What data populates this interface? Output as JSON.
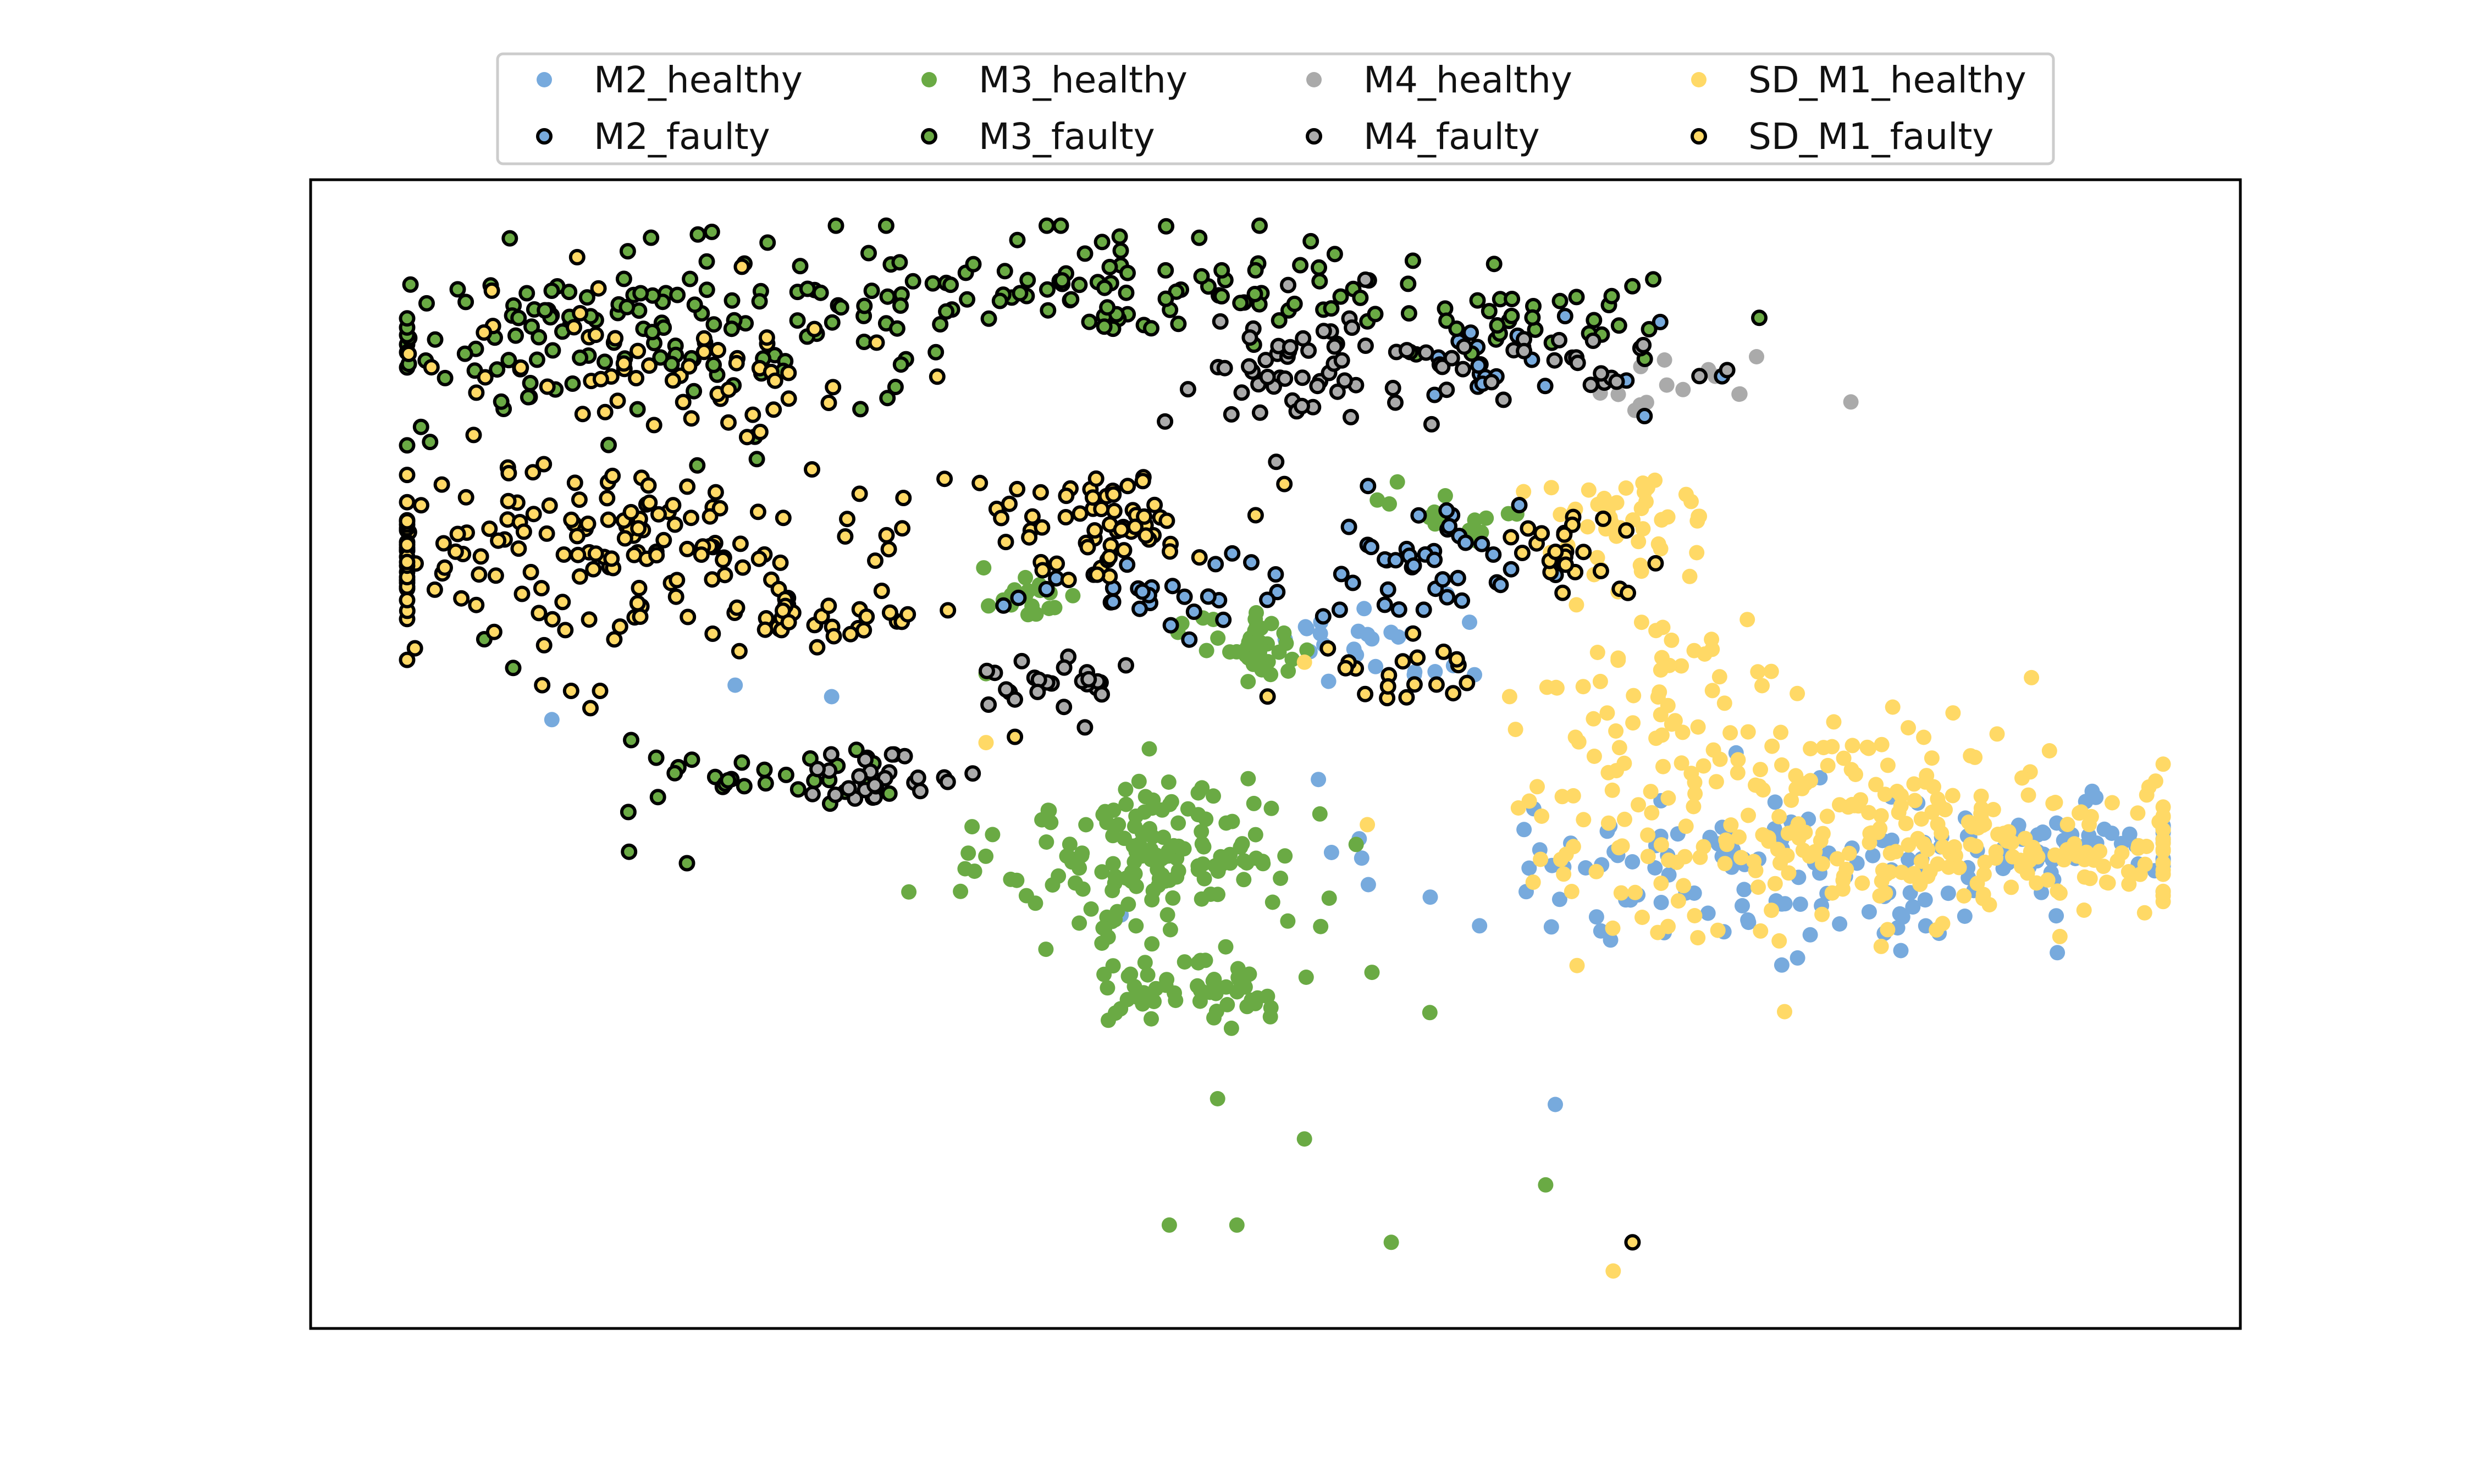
{
  "chart_data": {
    "type": "scatter",
    "title": "",
    "xlabel": "",
    "ylabel": "",
    "axes_ticks": false,
    "grid": false,
    "legend_position": "top-center (above plot), 4 columns",
    "xlim": [
      0,
      100
    ],
    "ylim": [
      0,
      100
    ],
    "colors": {
      "M2": "#77aadd",
      "M3": "#6aaa44",
      "M4": "#aaaaaa",
      "SD_M1": "#ffd966",
      "faulty_edge": "#000000"
    },
    "series": [
      {
        "name": "M2_healthy",
        "machine": "M2",
        "condition": "healthy",
        "clusters": [
          {
            "cx": 74,
            "cy": 40,
            "sx": 9,
            "sy": 4,
            "n": 120
          },
          {
            "cx": 92,
            "cy": 42,
            "sx": 5,
            "sy": 1.5,
            "n": 60
          },
          {
            "cx": 55,
            "cy": 60,
            "sx": 3,
            "sy": 3,
            "n": 25
          }
        ],
        "points": [
          [
            12.5,
            53
          ],
          [
            22,
            56
          ],
          [
            27,
            55
          ],
          [
            64.5,
            19.5
          ],
          [
            42,
            36
          ]
        ]
      },
      {
        "name": "M2_faulty",
        "machine": "M2",
        "condition": "faulty",
        "clusters": [
          {
            "cx": 58,
            "cy": 66,
            "sx": 2.5,
            "sy": 3,
            "n": 40
          },
          {
            "cx": 44,
            "cy": 64,
            "sx": 4,
            "sy": 1.5,
            "n": 30
          },
          {
            "cx": 62,
            "cy": 84,
            "sx": 4,
            "sy": 2,
            "n": 20
          }
        ],
        "points": []
      },
      {
        "name": "M3_healthy",
        "machine": "M3",
        "condition": "healthy",
        "clusters": [
          {
            "cx": 44,
            "cy": 41,
            "sx": 4,
            "sy": 3.5,
            "n": 150
          },
          {
            "cx": 46,
            "cy": 30,
            "sx": 3,
            "sy": 1.8,
            "n": 60
          },
          {
            "cx": 49,
            "cy": 59,
            "sx": 1.5,
            "sy": 1.5,
            "n": 40
          },
          {
            "cx": 37,
            "cy": 64,
            "sx": 1.5,
            "sy": 1,
            "n": 20
          },
          {
            "cx": 60,
            "cy": 71,
            "sx": 2,
            "sy": 1.5,
            "n": 15
          }
        ],
        "points": [
          [
            31,
            38
          ],
          [
            47,
            20
          ],
          [
            51.5,
            16.5
          ],
          [
            44.5,
            9
          ],
          [
            48,
            9
          ],
          [
            56,
            7.5
          ],
          [
            64,
            12.5
          ],
          [
            55,
            31
          ],
          [
            58,
            27.5
          ],
          [
            35,
            57
          ]
        ]
      },
      {
        "name": "M3_faulty",
        "machine": "M3",
        "condition": "faulty",
        "clusters": [
          {
            "cx": 16,
            "cy": 86,
            "sx": 7,
            "sy": 4,
            "n": 130
          },
          {
            "cx": 40,
            "cy": 91,
            "sx": 9,
            "sy": 2.5,
            "n": 110
          },
          {
            "cx": 62,
            "cy": 88,
            "sx": 5,
            "sy": 2,
            "n": 40
          },
          {
            "cx": 25,
            "cy": 48,
            "sx": 5,
            "sy": 1.5,
            "n": 30
          }
        ],
        "points": [
          [
            16.5,
            41.5
          ],
          [
            19.5,
            40.5
          ],
          [
            9,
            60
          ],
          [
            10.5,
            57.5
          ]
        ]
      },
      {
        "name": "M4_healthy",
        "machine": "M4",
        "condition": "healthy",
        "clusters": [
          {
            "cx": 71,
            "cy": 82,
            "sx": 3,
            "sy": 1.5,
            "n": 15
          }
        ],
        "points": []
      },
      {
        "name": "M4_faulty",
        "machine": "M4",
        "condition": "faulty",
        "clusters": [
          {
            "cx": 52,
            "cy": 83,
            "sx": 4,
            "sy": 2.5,
            "n": 60
          },
          {
            "cx": 39,
            "cy": 56,
            "sx": 2,
            "sy": 1.2,
            "n": 25
          },
          {
            "cx": 29,
            "cy": 48,
            "sx": 3,
            "sy": 1.2,
            "n": 25
          },
          {
            "cx": 66,
            "cy": 84,
            "sx": 3,
            "sy": 1.5,
            "n": 20
          }
        ],
        "points": []
      },
      {
        "name": "SD_M1_healthy",
        "machine": "SD_M1",
        "condition": "healthy",
        "clusters": [
          {
            "cx": 78,
            "cy": 44,
            "sx": 8,
            "sy": 5,
            "n": 230
          },
          {
            "cx": 90,
            "cy": 42,
            "sx": 6,
            "sy": 2.5,
            "n": 90
          },
          {
            "cx": 68,
            "cy": 70,
            "sx": 2.5,
            "sy": 2.5,
            "n": 50
          },
          {
            "cx": 70,
            "cy": 57,
            "sx": 4,
            "sy": 3,
            "n": 40
          }
        ],
        "points": [
          [
            67.5,
            5
          ],
          [
            68.5,
            7.5
          ],
          [
            35,
            51
          ],
          [
            36.5,
            51.5
          ],
          [
            51.5,
            58
          ]
        ]
      },
      {
        "name": "SD_M1_faulty",
        "machine": "SD_M1",
        "condition": "faulty",
        "clusters": [
          {
            "cx": 15,
            "cy": 68,
            "sx": 9,
            "sy": 3.5,
            "n": 170
          },
          {
            "cx": 41,
            "cy": 70,
            "sx": 3,
            "sy": 2.5,
            "n": 60
          },
          {
            "cx": 26,
            "cy": 62,
            "sx": 3,
            "sy": 1.2,
            "n": 30
          },
          {
            "cx": 18,
            "cy": 83,
            "sx": 7,
            "sy": 4,
            "n": 60
          },
          {
            "cx": 56,
            "cy": 57,
            "sx": 2,
            "sy": 2,
            "n": 20
          },
          {
            "cx": 65,
            "cy": 68,
            "sx": 2,
            "sy": 2.5,
            "n": 25
          }
        ],
        "points": [
          [
            12,
            56
          ],
          [
            13.5,
            55.5
          ],
          [
            15,
            55.5
          ],
          [
            14.5,
            54
          ],
          [
            68.5,
            7.5
          ],
          [
            36.5,
            51.5
          ]
        ]
      }
    ]
  }
}
